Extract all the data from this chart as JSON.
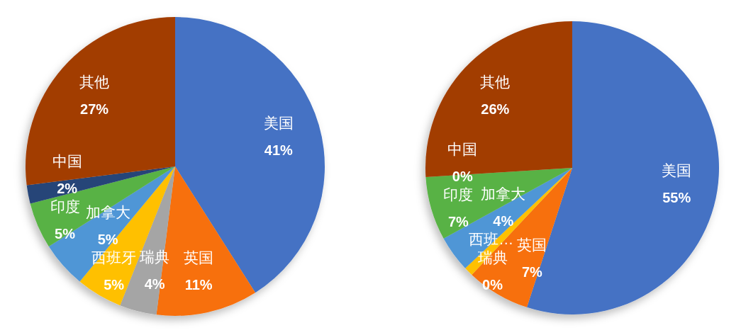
{
  "chart_data": [
    {
      "type": "pie",
      "categories": [
        "美国",
        "英国",
        "瑞典",
        "西班牙",
        "加拿大",
        "印度",
        "中国",
        "其他"
      ],
      "values": [
        41,
        11,
        4,
        5,
        5,
        5,
        2,
        27
      ],
      "colors": [
        "#4472c4",
        "#f7700e",
        "#a5a5a5",
        "#ffc000",
        "#4f96d6",
        "#58b244",
        "#264478",
        "#a23d02"
      ],
      "value_labels": [
        "41%",
        "11%",
        "4%",
        "5%",
        "5%",
        "5%",
        "2%",
        "27%"
      ]
    },
    {
      "type": "pie",
      "categories": [
        "美国",
        "英国",
        "瑞典",
        "西班…",
        "加拿大",
        "印度",
        "中国",
        "其他"
      ],
      "values": [
        55,
        7,
        0,
        1,
        4,
        7,
        0,
        26
      ],
      "colors": [
        "#4472c4",
        "#f7700e",
        "#a5a5a5",
        "#ffc000",
        "#4f96d6",
        "#58b244",
        "#264478",
        "#a23d02"
      ],
      "value_labels": [
        "55%",
        "7%",
        "0%",
        null,
        "4%",
        "7%",
        "0%",
        "26%"
      ]
    }
  ]
}
